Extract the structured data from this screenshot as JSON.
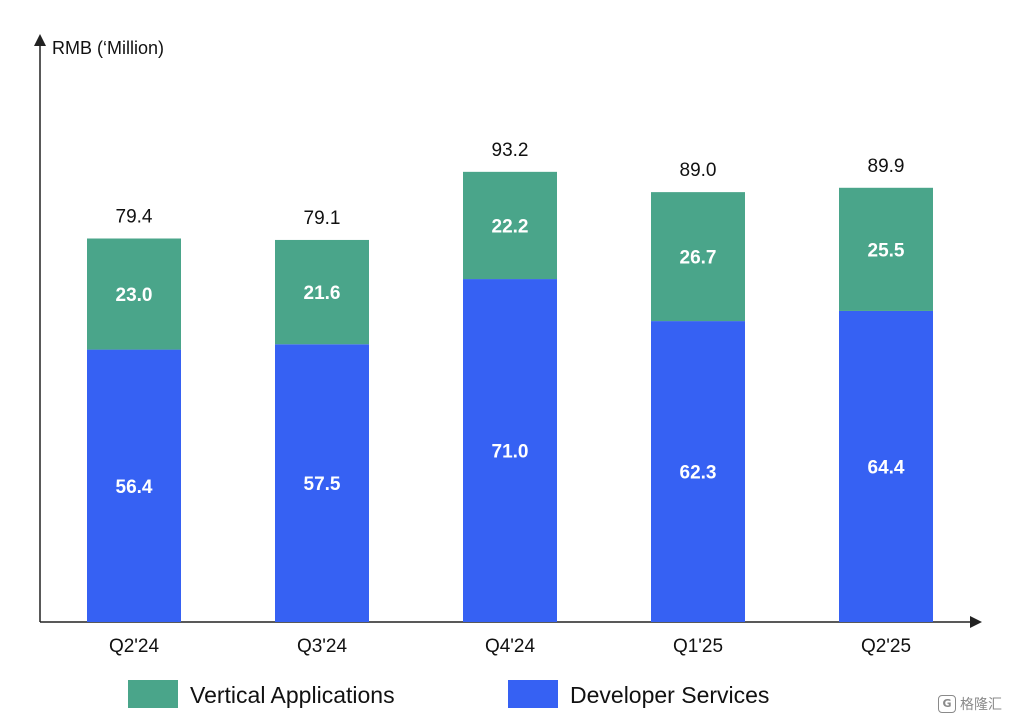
{
  "chart_data": {
    "type": "bar",
    "stacked": true,
    "ylabel": "RMB (‘Million)",
    "ylim": [
      0,
      120
    ],
    "grid": false,
    "legend_position": "bottom",
    "categories": [
      "Q2'24",
      "Q3'24",
      "Q4'24",
      "Q1'25",
      "Q2'25"
    ],
    "totals": [
      79.4,
      79.1,
      93.2,
      89.0,
      89.9
    ],
    "total_labels": [
      "79.4",
      "79.1",
      "93.2",
      "89.0",
      "89.9"
    ],
    "series": [
      {
        "name": "Developer Services",
        "color": "#3661f3",
        "values": [
          56.4,
          57.5,
          71.0,
          62.3,
          64.4
        ],
        "labels": [
          "56.4",
          "57.5",
          "71.0",
          "62.3",
          "64.4"
        ]
      },
      {
        "name": "Vertical Applications",
        "color": "#4aa58a",
        "values": [
          23.0,
          21.6,
          22.2,
          26.7,
          25.5
        ],
        "labels": [
          "23.0",
          "21.6",
          "22.2",
          "26.7",
          "25.5"
        ]
      }
    ],
    "legend": [
      "Vertical Applications",
      "Developer Services"
    ]
  },
  "watermark": {
    "text": "格隆汇",
    "logo_text": "G"
  }
}
